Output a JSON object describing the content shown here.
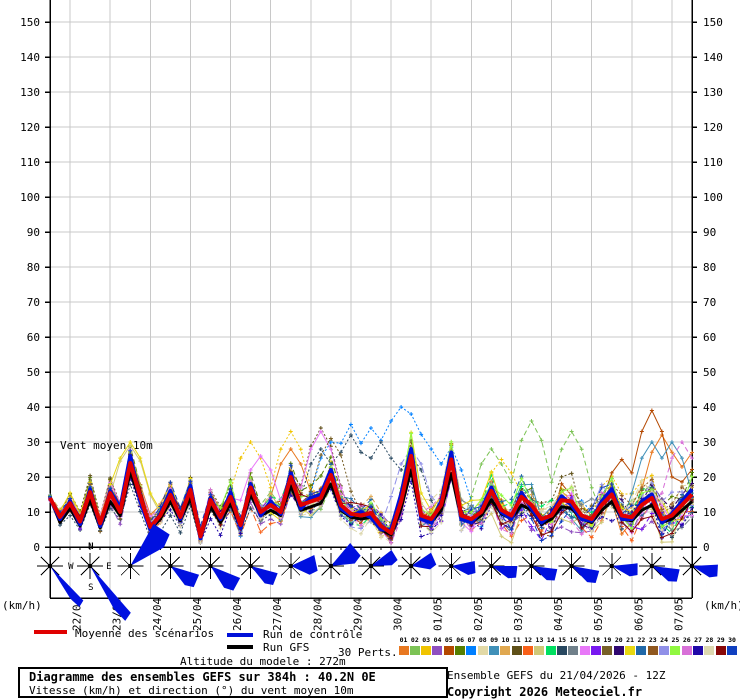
{
  "chart_data": {
    "type": "line",
    "title": "Diagramme des ensembles GEFS sur 384h : 40.2N 0E",
    "overlay_label": "Vent moyen 10m",
    "unit_left": "(km/h)",
    "unit_right": "(km/h)",
    "ylim": [
      0,
      150
    ],
    "ytick_step": 10,
    "grid": true,
    "x_step_hours": 6,
    "x_dates": [
      "22/04",
      "23/04",
      "24/04",
      "25/04",
      "26/04",
      "27/04",
      "28/04",
      "29/04",
      "30/04",
      "01/05",
      "02/05",
      "03/05",
      "04/05",
      "05/05",
      "06/05",
      "07/05"
    ],
    "series": [
      {
        "name": "Moyenne des scénarios",
        "color": "#e00000",
        "width": 4,
        "values": [
          14,
          8.6,
          12.5,
          7.3,
          15.7,
          6.8,
          15.4,
          10,
          24,
          14.3,
          5.7,
          9,
          14.9,
          8.6,
          16.3,
          3,
          13.4,
          8.5,
          14.3,
          6.3,
          17,
          10,
          12,
          10,
          20,
          12,
          13,
          14,
          20.6,
          12,
          9.5,
          9,
          9.7,
          6,
          4,
          13,
          26,
          9,
          8,
          12,
          25,
          9,
          8,
          10,
          16,
          10.6,
          9,
          14.3,
          12,
          8,
          9,
          13.4,
          13,
          9,
          8,
          12,
          15,
          9,
          8.5,
          12,
          14,
          8,
          9,
          12,
          15
        ]
      },
      {
        "name": "Run de contrôle",
        "color": "#0010d8",
        "width": 4,
        "values": [
          14,
          8,
          13,
          6.5,
          16.5,
          6,
          16,
          11,
          26,
          13,
          5,
          9.5,
          16,
          8,
          17.5,
          2.5,
          14,
          8,
          15.5,
          5.5,
          18,
          9,
          13,
          9.5,
          21,
          11,
          14,
          15,
          22,
          11,
          9,
          10,
          8.5,
          5,
          5,
          15,
          28,
          8,
          7,
          13,
          27,
          8,
          7,
          10.5,
          17,
          10,
          8,
          15.5,
          11,
          7,
          9.5,
          14.5,
          12,
          8,
          7.5,
          13,
          16.5,
          8,
          8,
          13,
          15,
          7,
          9.5,
          13,
          16.5
        ]
      },
      {
        "name": "Run GFS",
        "color": "#000000",
        "width": 3,
        "values": [
          14,
          7,
          11,
          6,
          13.5,
          5.5,
          13,
          9,
          21.5,
          13,
          5,
          8,
          13,
          7.5,
          14,
          2.5,
          11.5,
          7,
          12.5,
          5.5,
          15,
          9,
          10.5,
          9,
          17.5,
          10.5,
          11.5,
          12.5,
          18,
          10.5,
          8.5,
          8,
          8.5,
          5,
          3.5,
          11,
          22,
          8,
          7,
          10.5,
          21,
          8,
          7,
          9,
          13.5,
          9.5,
          8,
          12,
          10.5,
          6.5,
          8,
          11.5,
          11,
          8,
          7,
          10.5,
          13,
          8,
          7.5,
          10.5,
          12,
          7,
          8,
          10.5,
          13
        ]
      }
    ],
    "members": {
      "count": 30,
      "labels": [
        "01",
        "02",
        "03",
        "04",
        "05",
        "06",
        "07",
        "08",
        "09",
        "10",
        "11",
        "12",
        "13",
        "14",
        "15",
        "16",
        "17",
        "18",
        "19",
        "20",
        "21",
        "22",
        "23",
        "24",
        "25",
        "26",
        "27",
        "28",
        "29",
        "30"
      ],
      "colors": [
        "#e87820",
        "#7cc355",
        "#f0c400",
        "#8f4fbf",
        "#b44800",
        "#567f00",
        "#0080ff",
        "#e2d9a6",
        "#4090b8",
        "#e0a850",
        "#5f5018",
        "#f86018",
        "#d0c878",
        "#00df60",
        "#284860",
        "#70808a",
        "#e878f8",
        "#7818f0",
        "#786028",
        "#300870",
        "#e8d810",
        "#2068a8",
        "#905820",
        "#9090e8",
        "#90f840",
        "#d870d8",
        "#2008a8",
        "#ddd8b0",
        "#880808",
        "#1040c0"
      ],
      "peak_boosts": [
        [
          7,
          28,
          30
        ],
        [
          7,
          30,
          35
        ],
        [
          7,
          32,
          34
        ],
        [
          7,
          34,
          36
        ],
        [
          7,
          35,
          40
        ],
        [
          7,
          36,
          38
        ],
        [
          7,
          38,
          28
        ],
        [
          7,
          40,
          26
        ],
        [
          15,
          27,
          28
        ],
        [
          15,
          30,
          32
        ],
        [
          15,
          33,
          30
        ],
        [
          15,
          36,
          26
        ],
        [
          2,
          44,
          28
        ],
        [
          2,
          48,
          36
        ],
        [
          2,
          52,
          33
        ],
        [
          5,
          57,
          25
        ],
        [
          5,
          60,
          39
        ],
        [
          9,
          60,
          30
        ],
        [
          9,
          62,
          30
        ],
        [
          1,
          24,
          28
        ],
        [
          1,
          61,
          32
        ],
        [
          1,
          64,
          27
        ],
        [
          17,
          21,
          26
        ],
        [
          17,
          27,
          33
        ],
        [
          3,
          20,
          30
        ],
        [
          3,
          24,
          33
        ],
        [
          3,
          45,
          25
        ],
        [
          11,
          27,
          34
        ],
        [
          19,
          28,
          31
        ],
        [
          26,
          63,
          30
        ],
        [
          24,
          36,
          28
        ],
        [
          21,
          8,
          30
        ],
        [
          13,
          8,
          29
        ]
      ]
    },
    "wind_arrows": {
      "color": "#0010e0",
      "compass": {
        "n": "N",
        "e": "E",
        "s": "S",
        "w": "W",
        "star_index": 1
      },
      "angles_deg": [
        52,
        55,
        -45,
        35,
        40,
        33,
        0,
        -28,
        -20,
        -12,
        8,
        18,
        25,
        28,
        12,
        25,
        15
      ],
      "lengths": [
        48,
        62,
        48,
        30,
        32,
        28,
        26,
        30,
        26,
        24,
        24,
        26,
        26,
        28,
        26,
        28,
        26
      ],
      "spreads": [
        6,
        6,
        16,
        18,
        18,
        18,
        25,
        22,
        18,
        22,
        20,
        18,
        18,
        18,
        18,
        18,
        18
      ]
    },
    "legend_position": "bottom"
  },
  "legend": {
    "mean": "Moyenne des scénarios",
    "control": "Run de contrôle",
    "gfs": "Run GFS",
    "perts": "30 Perts.",
    "mean_color": "#e00000",
    "control_color": "#0010d8",
    "gfs_color": "#000000"
  },
  "footer": {
    "altitude": "Altitude du modele : 272m",
    "box_title": "Diagramme des ensembles GEFS sur 384h : 40.2N 0E",
    "box_subtitle": "Vitesse (km/h) et direction (°) du vent moyen 10m",
    "run_info": "Ensemble GEFS du 21/04/2026 - 12Z",
    "copyright": "Copyright 2026 Meteociel.fr"
  }
}
